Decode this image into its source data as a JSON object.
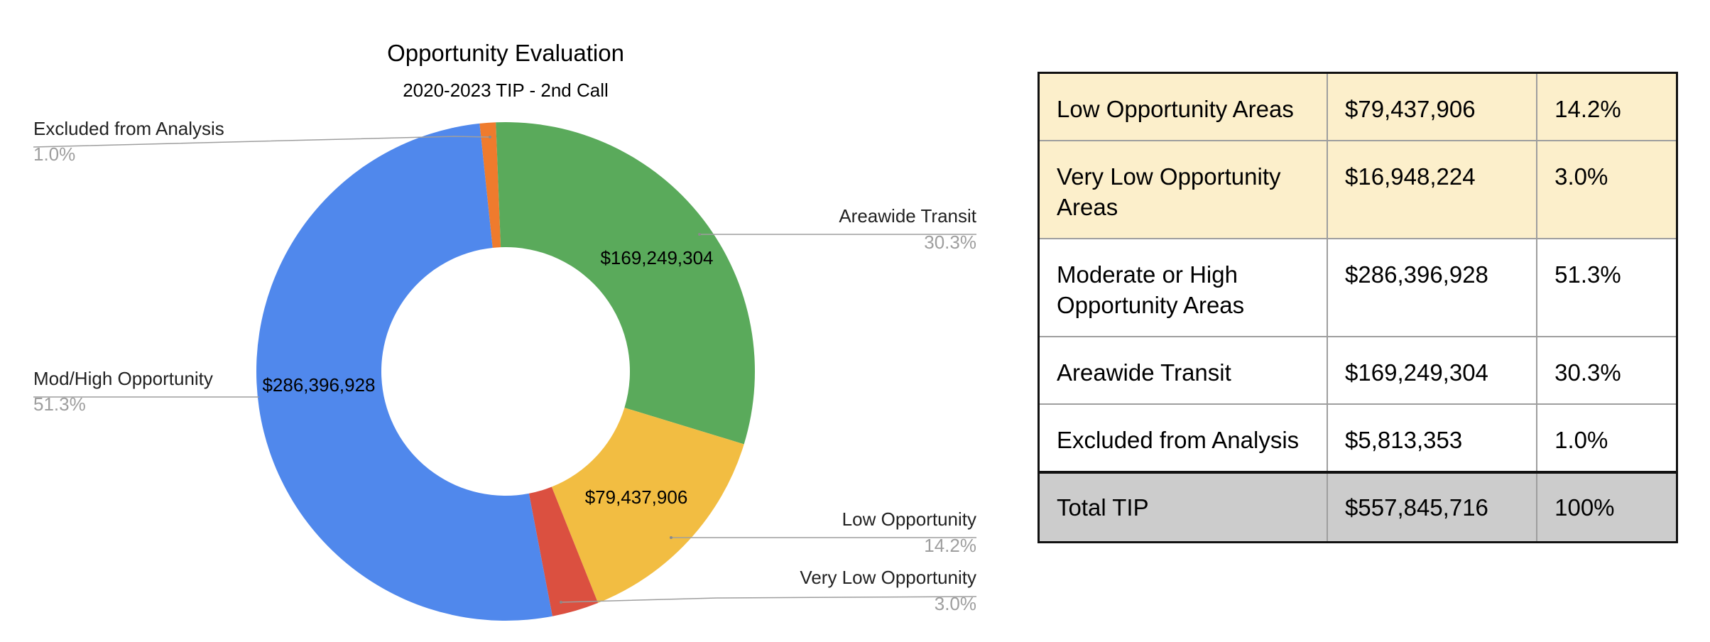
{
  "chart_data": {
    "type": "pie",
    "style": "donut",
    "title": "Opportunity Evaluation",
    "subtitle": "2020-2023 TIP - 2nd Call",
    "legend": "none",
    "slices": [
      {
        "key": "excluded",
        "label": "Excluded from Analysis",
        "value": 5813353,
        "value_label": "",
        "percent_label": "1.0%",
        "color": "#ef7b2d"
      },
      {
        "key": "transit",
        "label": "Areawide Transit",
        "value": 169249304,
        "value_label": "$169,249,304",
        "percent_label": "30.3%",
        "color": "#5aaa5b"
      },
      {
        "key": "low",
        "label": "Low Opportunity",
        "value": 79437906,
        "value_label": "$79,437,906",
        "percent_label": "14.2%",
        "color": "#f2bd42"
      },
      {
        "key": "verylow",
        "label": "Very Low Opportunity",
        "value": 16948224,
        "value_label": "",
        "percent_label": "3.0%",
        "color": "#db5040"
      },
      {
        "key": "modhigh",
        "label": "Mod/High Opportunity",
        "value": 286396928,
        "value_label": "$286,396,928",
        "percent_label": "51.3%",
        "color": "#5088ec"
      }
    ]
  },
  "table": {
    "rows": [
      {
        "name": "Low Opportunity Areas",
        "amount": "$79,437,906",
        "percent": "14.2%",
        "highlight": true
      },
      {
        "name": "Very Low Opportunity Areas",
        "amount": "$16,948,224",
        "percent": "3.0%",
        "highlight": true
      },
      {
        "name": "Moderate or High Opportunity Areas",
        "amount": "$286,396,928",
        "percent": "51.3%",
        "highlight": false
      },
      {
        "name": "Areawide Transit",
        "amount": "$169,249,304",
        "percent": "30.3%",
        "highlight": false
      },
      {
        "name": "Excluded from Analysis",
        "amount": "$5,813,353",
        "percent": "1.0%",
        "highlight": false
      }
    ],
    "total": {
      "name": "Total TIP",
      "amount": "$557,845,716",
      "percent": "100%"
    }
  }
}
